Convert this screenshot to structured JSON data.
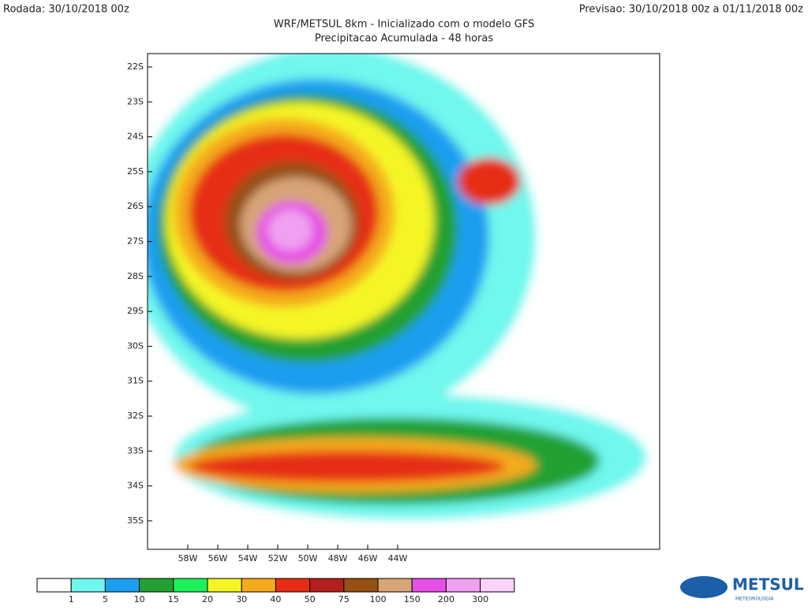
{
  "header": {
    "run": "Rodada: 30/10/2018 00z",
    "forecast": "Previsao: 30/10/2018 00z a 01/11/2018 00z",
    "title": "WRF/METSUL 8km - Inicializado com o modelo GFS",
    "subtitle": "Precipitacao Acumulada - 48 horas"
  },
  "map": {
    "lat_labels": [
      "22S",
      "23S",
      "24S",
      "25S",
      "26S",
      "27S",
      "28S",
      "29S",
      "30S",
      "31S",
      "32S",
      "33S",
      "34S",
      "35S"
    ],
    "lon_labels": [
      "58W",
      "56W",
      "54W",
      "52W",
      "50W",
      "48W",
      "46W",
      "44W"
    ]
  },
  "colorbar": {
    "colors": [
      "#ffffff",
      "#6ff7ee",
      "#1c9ef0",
      "#23a032",
      "#1ef05a",
      "#f5f526",
      "#f5aa1c",
      "#e62d14",
      "#b41e1e",
      "#965014",
      "#d7a578",
      "#e650e6",
      "#f0a0f0",
      "#fad2fa"
    ],
    "ticks": [
      1,
      5,
      10,
      15,
      20,
      30,
      40,
      50,
      75,
      100,
      150,
      200,
      300
    ]
  },
  "logo": {
    "name": "METSUL",
    "tagline": "METEOROLOGIA"
  }
}
